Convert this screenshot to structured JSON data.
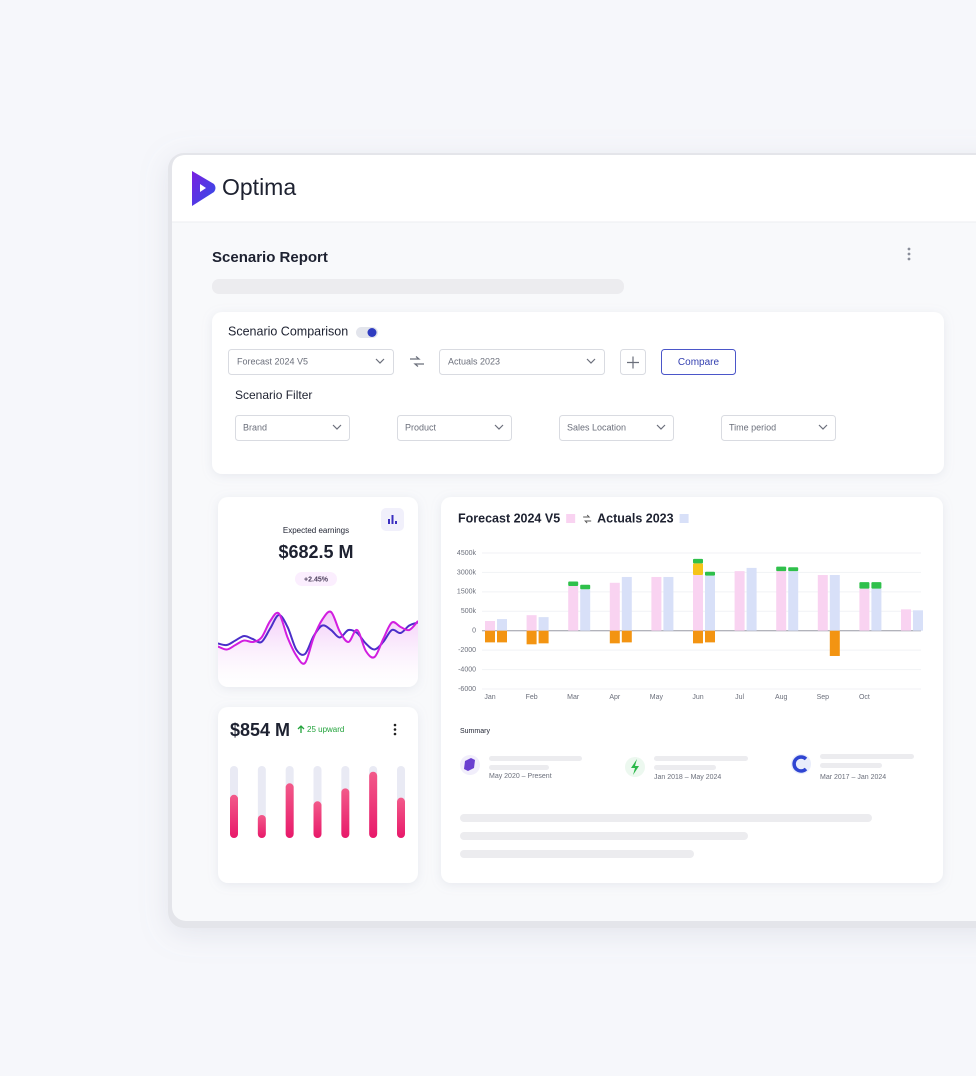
{
  "app": {
    "name": "Optima"
  },
  "report": {
    "title": "Scenario Report"
  },
  "comparison": {
    "title": "Scenario Comparison",
    "scenario_a": "Forecast 2024 V5",
    "scenario_b": "Actuals 2023",
    "button": "Compare"
  },
  "filter": {
    "title": "Scenario Filter",
    "fields": [
      "Brand",
      "Product",
      "Sales Location",
      "Time period"
    ]
  },
  "earnings": {
    "label": "Expected earnings",
    "value": "$682.5 M",
    "change": "+2.45%",
    "chart": {
      "type": "line",
      "ylim": [
        0,
        100
      ],
      "series": [
        {
          "color": "#4b2fc9",
          "values": [
            42,
            40,
            46,
            52,
            48,
            44,
            62,
            80,
            64,
            34,
            28,
            52,
            66,
            60,
            50,
            60,
            56,
            42,
            34,
            44,
            60,
            56,
            66,
            70
          ]
        },
        {
          "color": "#d21ee0",
          "values": [
            38,
            34,
            40,
            46,
            44,
            50,
            72,
            82,
            50,
            26,
            16,
            50,
            74,
            84,
            58,
            44,
            60,
            32,
            24,
            48,
            70,
            64,
            60,
            72
          ]
        }
      ]
    }
  },
  "growth": {
    "value": "$854 M",
    "change": "25 upward",
    "chart": {
      "type": "bar",
      "ylim": [
        0,
        100
      ],
      "color": "#ec2f74",
      "values": [
        60,
        32,
        76,
        51,
        69,
        92,
        56
      ]
    }
  },
  "comparison_chart": {
    "type": "bar",
    "categories": [
      "Jan",
      "Feb",
      "Mar",
      "Apr",
      "May",
      "Jun",
      "Jul",
      "Aug",
      "Sep",
      "Oct",
      null
    ],
    "ylim": [
      -6000,
      4500000
    ],
    "yticks": [
      {
        "value": 4500000,
        "label": "4500k"
      },
      {
        "value": 3000000,
        "label": "3000k"
      },
      {
        "value": 1500000,
        "label": "1500k"
      },
      {
        "value": 500000,
        "label": "500k"
      },
      0,
      -2000,
      -4000,
      -6000
    ],
    "grid": true,
    "series": [
      {
        "name": "Forecast 2024 V5",
        "color": "#f9d3f1",
        "values": [
          250000,
          400000,
          1950000,
          2200000,
          2650000,
          2800000,
          3100000,
          3100000,
          2800000,
          1750000,
          600000
        ],
        "segments": [
          {
            "color": "#f39412",
            "values": [
              -1200,
              -1400,
              null,
              -1300,
              null,
              -1300,
              null,
              null,
              null,
              null,
              null
            ]
          },
          {
            "color": "#f5c419",
            "values": [
              null,
              null,
              null,
              null,
              null,
              900000,
              null,
              null,
              null,
              null,
              null
            ]
          },
          {
            "color": "#2fc04b",
            "values": [
              null,
              null,
              350000,
              null,
              null,
              350000,
              null,
              350000,
              null,
              500000,
              null
            ]
          }
        ]
      },
      {
        "name": "Actuals 2023",
        "color": "#d8e0f8",
        "values": [
          300000,
          350000,
          1700000,
          2650000,
          2650000,
          2750000,
          3350000,
          3100000,
          2800000,
          1750000,
          550000
        ],
        "segments": [
          {
            "color": "#f39412",
            "values": [
              -1200,
              -1300,
              null,
              -1200,
              null,
              -1200,
              null,
              null,
              -2600,
              null,
              null
            ]
          },
          {
            "color": "#2fc04b",
            "values": [
              null,
              null,
              350000,
              null,
              null,
              300000,
              null,
              300000,
              null,
              500000,
              null
            ]
          }
        ]
      }
    ]
  },
  "summary": {
    "title": "Summary",
    "items": [
      {
        "period": "May 2020 – Present"
      },
      {
        "period": "Jan 2018 – May 2024"
      },
      {
        "period": "Mar 2017 – Jan 2024"
      }
    ]
  }
}
